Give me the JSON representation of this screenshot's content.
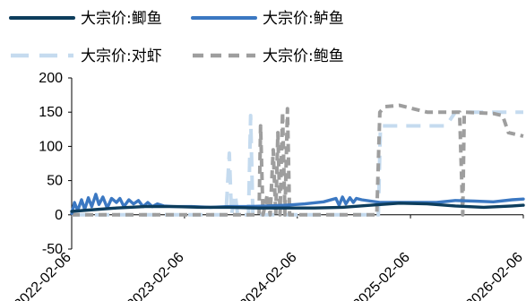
{
  "chart_data": {
    "type": "line",
    "title": "",
    "xlabel": "",
    "ylabel": "",
    "ylim": [
      -50,
      200
    ],
    "yticks": [
      -50,
      0,
      50,
      100,
      150,
      200
    ],
    "xlim": [
      "2022-02-06",
      "2026-02-06"
    ],
    "xticks": [
      "2022-02-06",
      "2023-02-06",
      "2024-02-06",
      "2025-02-06",
      "2026-02-06"
    ],
    "grid": false,
    "legend_position": "top",
    "series": [
      {
        "name": "大宗价:鲫鱼",
        "color": "#0d3d5c",
        "style": "solid",
        "points": [
          [
            "2022-02-06",
            5
          ],
          [
            "2022-04-01",
            7
          ],
          [
            "2022-07-01",
            10
          ],
          [
            "2022-10-01",
            12
          ],
          [
            "2023-01-01",
            12
          ],
          [
            "2023-04-01",
            11
          ],
          [
            "2023-07-01",
            11
          ],
          [
            "2023-10-01",
            10
          ],
          [
            "2024-01-01",
            10
          ],
          [
            "2024-04-01",
            10
          ],
          [
            "2024-07-01",
            11
          ],
          [
            "2024-10-01",
            14
          ],
          [
            "2025-01-01",
            17
          ],
          [
            "2025-04-01",
            16
          ],
          [
            "2025-07-01",
            13
          ],
          [
            "2025-10-01",
            11
          ],
          [
            "2026-01-01",
            13
          ],
          [
            "2026-02-06",
            14
          ]
        ]
      },
      {
        "name": "大宗价:鲈鱼",
        "color": "#3b78c2",
        "style": "solid",
        "points": [
          [
            "2022-02-06",
            2
          ],
          [
            "2022-02-15",
            18
          ],
          [
            "2022-02-25",
            6
          ],
          [
            "2022-03-10",
            22
          ],
          [
            "2022-03-20",
            8
          ],
          [
            "2022-04-01",
            25
          ],
          [
            "2022-04-12",
            12
          ],
          [
            "2022-04-25",
            30
          ],
          [
            "2022-05-05",
            15
          ],
          [
            "2022-05-18",
            26
          ],
          [
            "2022-06-01",
            10
          ],
          [
            "2022-06-15",
            24
          ],
          [
            "2022-07-01",
            18
          ],
          [
            "2022-07-12",
            24
          ],
          [
            "2022-07-25",
            12
          ],
          [
            "2022-08-10",
            22
          ],
          [
            "2022-08-25",
            16
          ],
          [
            "2022-09-10",
            21
          ],
          [
            "2022-09-25",
            12
          ],
          [
            "2022-10-10",
            18
          ],
          [
            "2022-10-25",
            12
          ],
          [
            "2022-11-10",
            16
          ],
          [
            "2022-12-01",
            13
          ],
          [
            "2023-01-01",
            12
          ],
          [
            "2023-03-01",
            12
          ],
          [
            "2023-05-01",
            11
          ],
          [
            "2023-07-01",
            12
          ],
          [
            "2023-09-01",
            12
          ],
          [
            "2023-11-01",
            13
          ],
          [
            "2024-01-01",
            14
          ],
          [
            "2024-03-01",
            16
          ],
          [
            "2024-05-01",
            19
          ],
          [
            "2024-06-10",
            24
          ],
          [
            "2024-06-20",
            14
          ],
          [
            "2024-07-01",
            26
          ],
          [
            "2024-07-12",
            16
          ],
          [
            "2024-07-25",
            25
          ],
          [
            "2024-08-05",
            18
          ],
          [
            "2024-08-15",
            24
          ],
          [
            "2024-09-01",
            22
          ],
          [
            "2024-10-01",
            20
          ],
          [
            "2024-11-01",
            18
          ],
          [
            "2025-01-01",
            18
          ],
          [
            "2025-03-01",
            18
          ],
          [
            "2025-05-01",
            18
          ],
          [
            "2025-07-01",
            21
          ],
          [
            "2025-09-01",
            20
          ],
          [
            "2025-11-01",
            19
          ],
          [
            "2026-01-01",
            22
          ],
          [
            "2026-02-06",
            23
          ]
        ]
      },
      {
        "name": "大宗价:对虾",
        "color": "#c5dbef",
        "style": "dashed-long",
        "points": [
          [
            "2022-02-06",
            0
          ],
          [
            "2023-06-20",
            0
          ],
          [
            "2023-07-01",
            90
          ],
          [
            "2023-07-08",
            0
          ],
          [
            "2023-07-20",
            30
          ],
          [
            "2023-07-28",
            0
          ],
          [
            "2023-09-01",
            0
          ],
          [
            "2023-09-08",
            145
          ],
          [
            "2023-09-15",
            0
          ],
          [
            "2023-10-10",
            0
          ],
          [
            "2023-10-20",
            0
          ],
          [
            "2024-01-01",
            0
          ],
          [
            "2024-10-25",
            0
          ],
          [
            "2024-11-01",
            130
          ],
          [
            "2025-06-01",
            130
          ],
          [
            "2025-07-01",
            150
          ],
          [
            "2026-02-06",
            150
          ]
        ]
      },
      {
        "name": "大宗价:鲍鱼",
        "color": "#9e9e9e",
        "style": "dashed",
        "points": [
          [
            "2022-02-06",
            0
          ],
          [
            "2023-10-05",
            0
          ],
          [
            "2023-10-10",
            130
          ],
          [
            "2023-10-18",
            0
          ],
          [
            "2023-11-01",
            30
          ],
          [
            "2023-11-10",
            0
          ],
          [
            "2023-11-20",
            95
          ],
          [
            "2023-11-28",
            0
          ],
          [
            "2023-12-05",
            120
          ],
          [
            "2023-12-12",
            0
          ],
          [
            "2023-12-20",
            150
          ],
          [
            "2023-12-28",
            0
          ],
          [
            "2024-01-05",
            155
          ],
          [
            "2024-01-12",
            0
          ],
          [
            "2024-01-20",
            0
          ],
          [
            "2024-02-20",
            0
          ],
          [
            "2024-10-20",
            0
          ],
          [
            "2024-10-30",
            150
          ],
          [
            "2024-11-15",
            158
          ],
          [
            "2025-01-01",
            160
          ],
          [
            "2025-02-15",
            155
          ],
          [
            "2025-04-01",
            150
          ],
          [
            "2025-07-15",
            150
          ],
          [
            "2025-07-25",
            0
          ],
          [
            "2025-07-30",
            150
          ],
          [
            "2025-11-01",
            148
          ],
          [
            "2025-12-01",
            145
          ],
          [
            "2025-12-20",
            120
          ],
          [
            "2026-02-06",
            115
          ]
        ]
      }
    ]
  }
}
